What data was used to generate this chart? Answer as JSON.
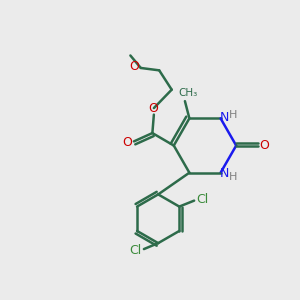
{
  "background_color": "#ebebeb",
  "bond_color": "#2d6b4a",
  "bond_lw": 1.8,
  "o_color": "#cc0000",
  "n_color": "#1a1aee",
  "cl_color": "#3a8a3a",
  "h_color": "#808080",
  "figsize": [
    3.0,
    3.0
  ],
  "dpi": 100,
  "xlim": [
    0,
    10
  ],
  "ylim": [
    0,
    10
  ]
}
